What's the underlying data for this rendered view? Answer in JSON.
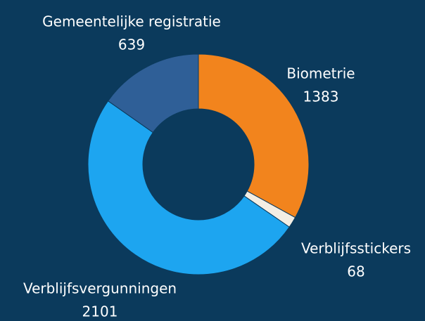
{
  "chart_data": {
    "type": "donut",
    "categories": [
      "Biometrie",
      "Verblijfsstickers",
      "Verblijfsvergunningen",
      "Gemeentelijke registratie"
    ],
    "values": [
      1383,
      68,
      2101,
      639
    ],
    "colors": [
      "#f2841d",
      "#f3eee4",
      "#1da5f0",
      "#2f5f97"
    ]
  }
}
